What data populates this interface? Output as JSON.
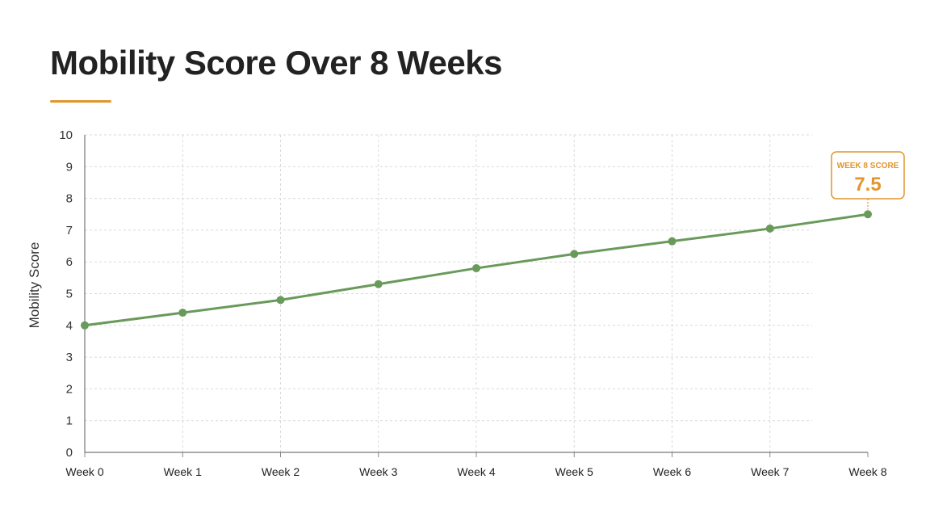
{
  "colors": {
    "accent": "#e0962c",
    "series": "#6a9a5b",
    "grid": "#d9d9d9",
    "axis": "#555555",
    "text": "#222222"
  },
  "chart_data": {
    "type": "line",
    "title": "Mobility Score Over 8 Weeks",
    "xlabel": "",
    "ylabel": "Mobility Score",
    "categories": [
      "Week 0",
      "Week 1",
      "Week 2",
      "Week 3",
      "Week 4",
      "Week 5",
      "Week 6",
      "Week 7",
      "Week 8"
    ],
    "series": [
      {
        "values": [
          4.0,
          4.4,
          4.8,
          5.3,
          5.8,
          6.25,
          6.65,
          7.05,
          7.5
        ]
      }
    ],
    "ylim": [
      0,
      10
    ],
    "yticks": [
      0,
      1,
      2,
      3,
      4,
      5,
      6,
      7,
      8,
      9,
      10
    ],
    "grid": true,
    "annotation": {
      "label": "WEEK 8 SCORE",
      "value": "7.5",
      "category_index": 8
    }
  }
}
